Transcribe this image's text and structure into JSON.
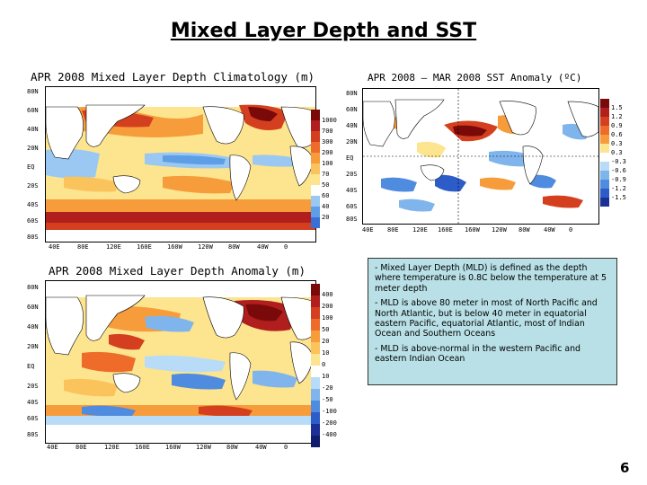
{
  "slide": {
    "title": "Mixed Layer Depth and SST",
    "page_number": "6"
  },
  "panels": {
    "climatology": {
      "title": "APR 2008 Mixed Layer Depth Climatology (m)",
      "lat_labels": [
        "80N",
        "60N",
        "40N",
        "20N",
        "EQ",
        "20S",
        "40S",
        "60S",
        "80S"
      ],
      "lon_labels": [
        "40E",
        "80E",
        "120E",
        "160E",
        "160W",
        "120W",
        "80W",
        "40W",
        "0"
      ],
      "colorbar": [
        "1000",
        "700",
        "300",
        "200",
        "100",
        "70",
        "50",
        "60",
        "40",
        "20"
      ],
      "colors": [
        "#7a0a0a",
        "#b01e1e",
        "#d4401f",
        "#ef6b2a",
        "#f79c3a",
        "#fbc35c",
        "#fde48e",
        "#ffffff",
        "#9ac8f2",
        "#5e9ee6",
        "#3b6fd6"
      ]
    },
    "sst": {
      "title": "APR 2008 — MAR 2008 SST Anomaly (ºC)",
      "lat_labels": [
        "80N",
        "60N",
        "40N",
        "20N",
        "EQ",
        "20S",
        "40S",
        "60S",
        "80S"
      ],
      "lon_labels": [
        "40E",
        "80E",
        "120E",
        "160E",
        "160W",
        "120W",
        "80W",
        "40W",
        "0"
      ],
      "colorbar": [
        "1.5",
        "1.2",
        "0.9",
        "0.6",
        "0.3",
        "0.3",
        "-0.3",
        "-0.6",
        "-0.9",
        "-1.2",
        "-1.5"
      ],
      "colors": [
        "#7a0a0a",
        "#b01e1e",
        "#d4401f",
        "#ef6b2a",
        "#f79c3a",
        "#fde48e",
        "#ffffff",
        "#b8dcf7",
        "#7fb5ec",
        "#4f8bdf",
        "#2c5cc8",
        "#1b2f96"
      ]
    },
    "anomaly": {
      "title": "APR 2008 Mixed Layer Depth Anomaly (m)",
      "lat_labels": [
        "80N",
        "60N",
        "40N",
        "20N",
        "EQ",
        "20S",
        "40S",
        "60S",
        "80S"
      ],
      "lon_labels": [
        "40E",
        "80E",
        "120E",
        "160E",
        "160W",
        "120W",
        "80W",
        "40W",
        "0"
      ],
      "colorbar": [
        "400",
        "200",
        "100",
        "50",
        "20",
        "10",
        "0",
        "10",
        "-20",
        "-50",
        "-100",
        "-200",
        "-400"
      ],
      "colors": [
        "#7a0a0a",
        "#b01e1e",
        "#d4401f",
        "#ef6b2a",
        "#f79c3a",
        "#fbc35c",
        "#fde48e",
        "#ffffff",
        "#b8dcf7",
        "#7fb5ec",
        "#4f8bdf",
        "#2c5cc8",
        "#1b2f96",
        "#101c6b"
      ]
    }
  },
  "notes": [
    "- Mixed Layer Depth (MLD) is defined as the depth where temperature is 0.8C below the temperature at 5 meter depth",
    "- MLD is above 80 meter in most of North Pacific and North Atlantic, but is below 40 meter in equatorial eastern Pacific, equatorial Atlantic, most of Indian Ocean and Southern Oceans",
    "- MLD is above-normal in the western Pacific and eastern Indian Ocean"
  ]
}
